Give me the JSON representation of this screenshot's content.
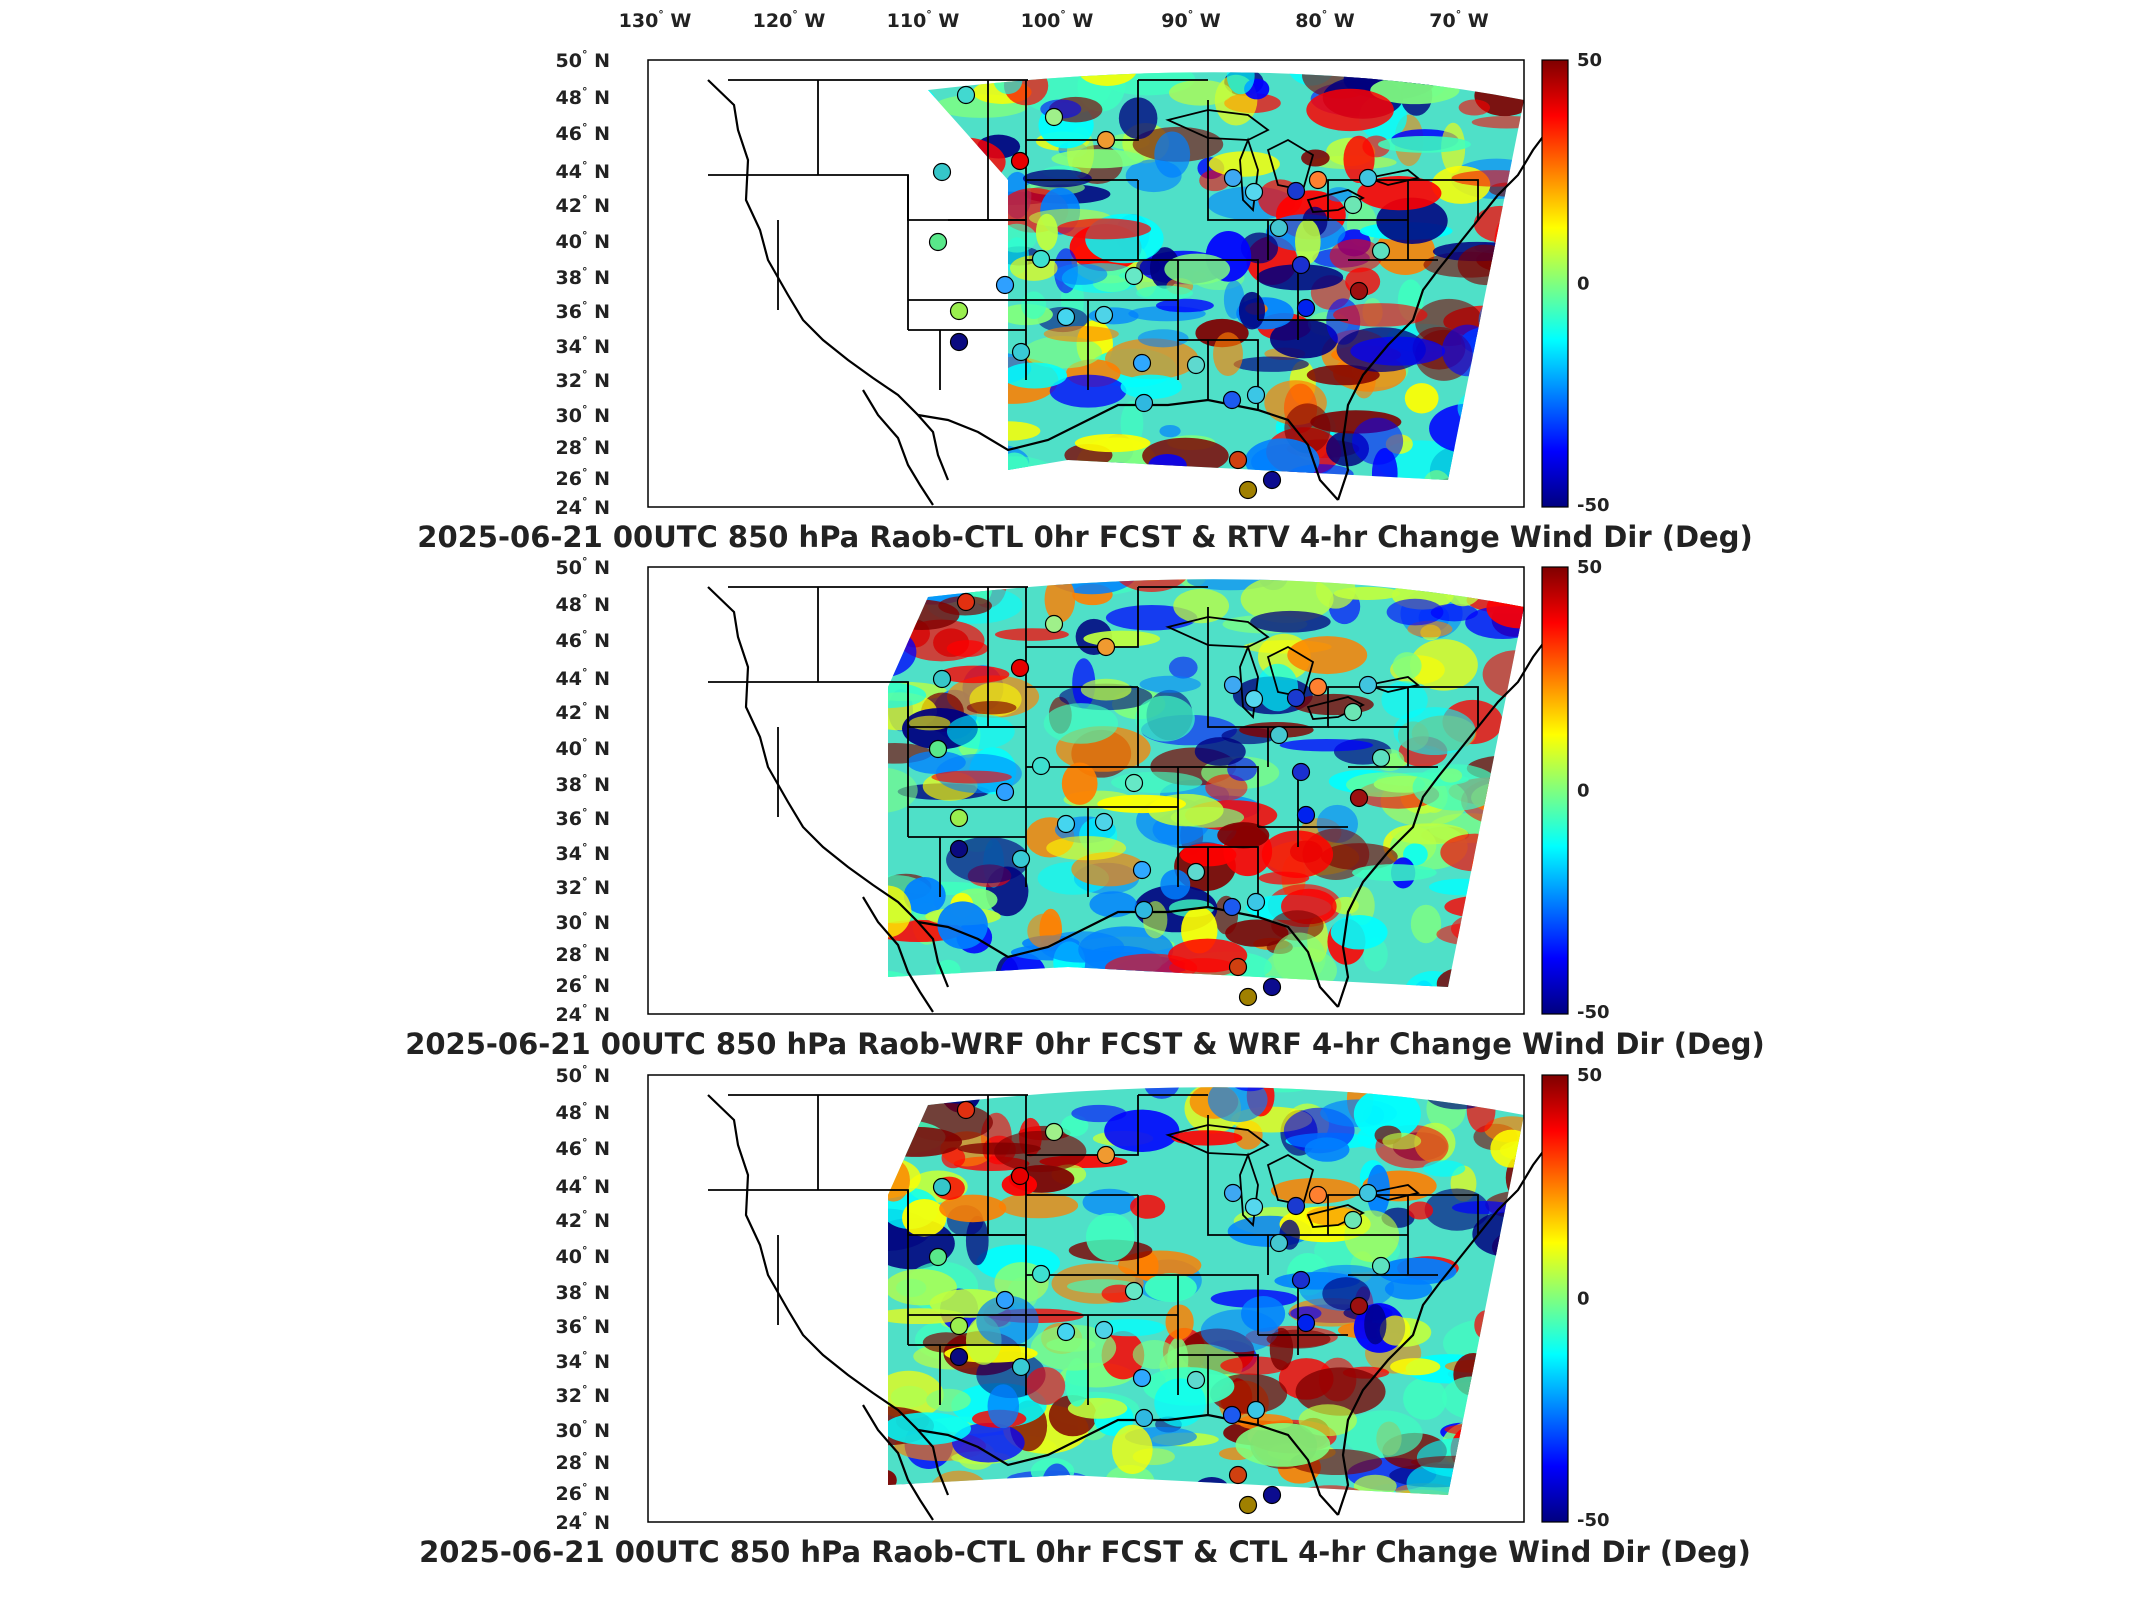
{
  "lon_labels": [
    "130",
    "120",
    "110",
    "100",
    "90",
    "80",
    "70"
  ],
  "lon_suffix": "W",
  "lat_labels": [
    "50",
    "48",
    "46",
    "44",
    "42",
    "40",
    "38",
    "36",
    "34",
    "32",
    "30",
    "28",
    "26",
    "24"
  ],
  "lat_suffix": "N",
  "colorbar": {
    "max": "50",
    "mid": "0",
    "min": "-50",
    "colors": [
      "#00007f",
      "#0000ff",
      "#007fff",
      "#00ffff",
      "#7fff7f",
      "#ffff00",
      "#ff7f00",
      "#ff0000",
      "#7f0000"
    ]
  },
  "panels": [
    {
      "title": "2025-06-21 00UTC 850 hPa Raob-CTL 0hr FCST & RTV 4-hr Change Wind Dir (Deg)"
    },
    {
      "title": "2025-06-21 00UTC 850 hPa Raob-WRF 0hr FCST & WRF 4-hr Change Wind Dir (Deg)"
    },
    {
      "title": "2025-06-21 00UTC 850 hPa Raob-CTL 0hr FCST & CTL 4-hr Change Wind Dir (Deg)"
    }
  ]
}
